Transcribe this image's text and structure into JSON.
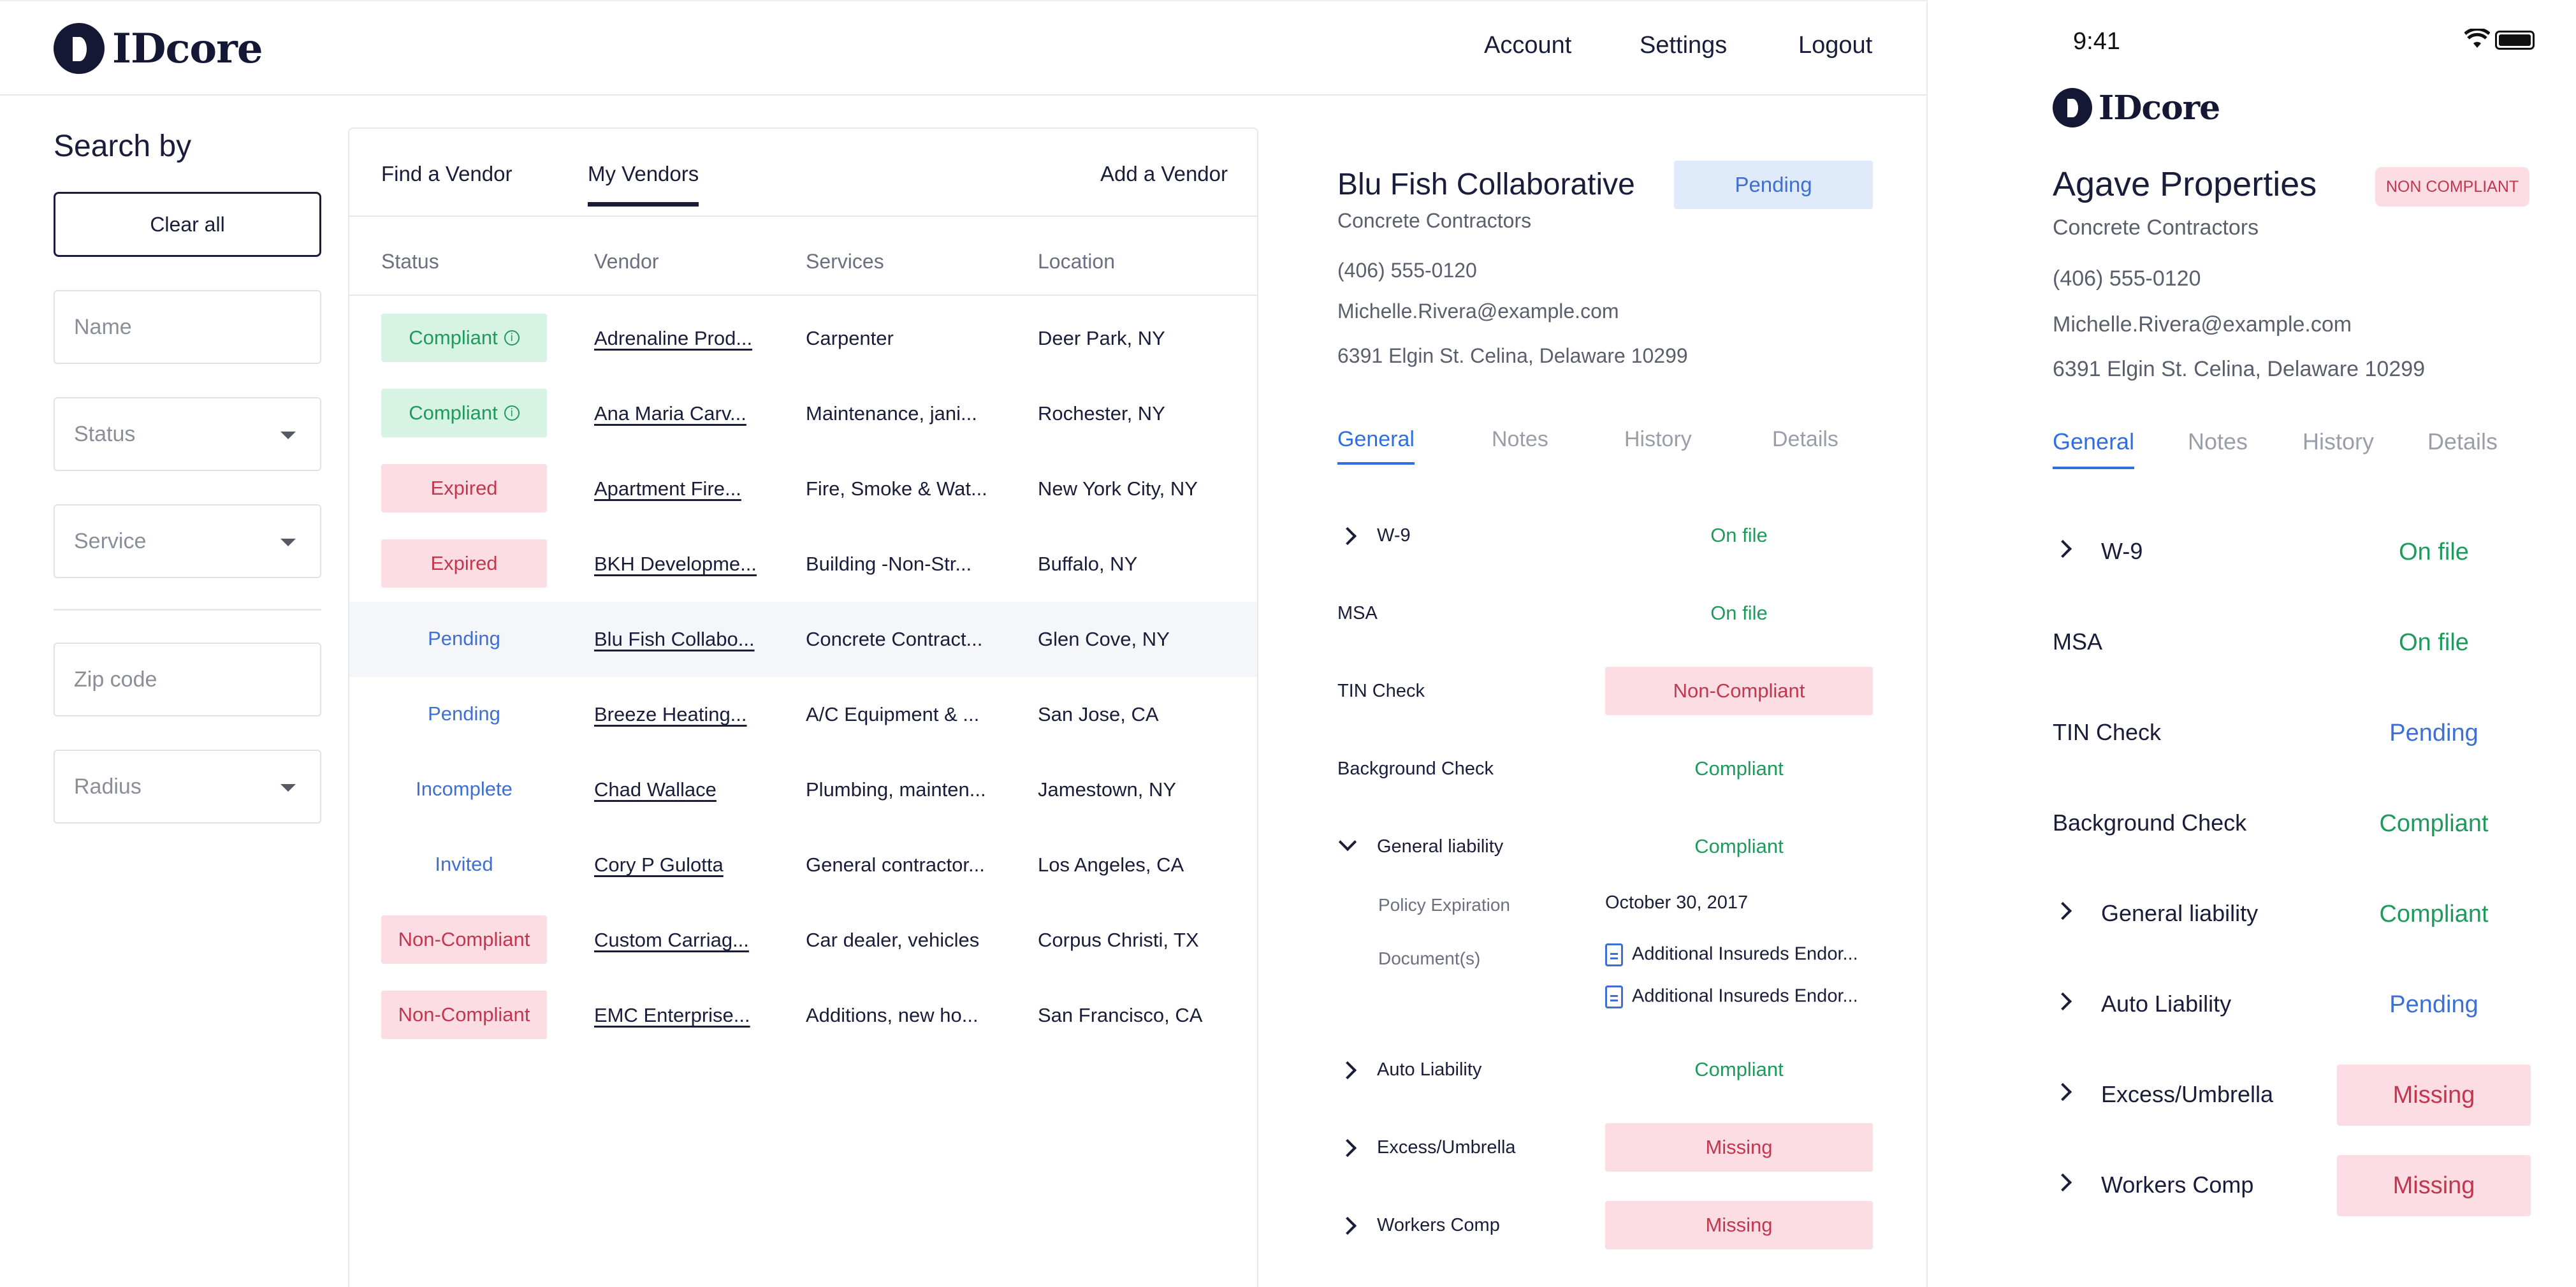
{
  "header": {
    "brand": "IDcore",
    "nav": [
      {
        "label": "Account"
      },
      {
        "label": "Settings"
      },
      {
        "label": "Logout"
      }
    ]
  },
  "sidebar": {
    "title": "Search by",
    "clear_label": "Clear all",
    "name_placeholder": "Name",
    "status_placeholder": "Status",
    "service_placeholder": "Service",
    "zip_placeholder": "Zip code",
    "radius_placeholder": "Radius"
  },
  "table": {
    "tabs": [
      {
        "label": "Find a Vendor"
      },
      {
        "label": "My Vendors"
      }
    ],
    "add_label": "Add a Vendor",
    "columns": [
      "Status",
      "Vendor",
      "Services",
      "Location"
    ],
    "rows": [
      {
        "status": "Compliant",
        "vendor": "Adrenaline Prod...",
        "services": "Carpenter",
        "location": "Deer Park, NY"
      },
      {
        "status": "Compliant",
        "vendor": "Ana Maria Carv...",
        "services": "Maintenance, jani...",
        "location": "Rochester, NY"
      },
      {
        "status": "Expired",
        "vendor": "Apartment Fire...",
        "services": "Fire, Smoke & Wat...",
        "location": "New York City, NY"
      },
      {
        "status": "Expired",
        "vendor": "BKH Developme...",
        "services": "Building -Non-Str...",
        "location": "Buffalo, NY"
      },
      {
        "status": "Pending",
        "vendor": "Blu Fish Collabo...",
        "services": "Concrete Contract...",
        "location": "Glen Cove, NY"
      },
      {
        "status": "Pending",
        "vendor": "Breeze Heating...",
        "services": "A/C Equipment & ...",
        "location": "San Jose, CA"
      },
      {
        "status": "Incomplete",
        "vendor": "Chad Wallace",
        "services": "Plumbing, mainten...",
        "location": "Jamestown, NY"
      },
      {
        "status": "Invited",
        "vendor": "Cory P Gulotta",
        "services": "General contractor...",
        "location": "Los Angeles, CA"
      },
      {
        "status": "Non-Compliant",
        "vendor": "Custom Carriag...",
        "services": "Car dealer, vehicles",
        "location": "Corpus Christi, TX"
      },
      {
        "status": "Non-Compliant",
        "vendor": "EMC Enterprise...",
        "services": "Additions, new ho...",
        "location": "San Francisco, CA"
      }
    ]
  },
  "detail": {
    "title": "Blu Fish Collaborative",
    "status": "Pending",
    "category": "Concrete Contractors",
    "phone": "(406) 555-0120",
    "email": "Michelle.Rivera@example.com",
    "address": "6391 Elgin St. Celina, Delaware 10299",
    "tabs": [
      "General",
      "Notes",
      "History",
      "Details"
    ],
    "requirements": [
      {
        "label": "W-9",
        "value": "On file"
      },
      {
        "label": "MSA",
        "value": "On file"
      },
      {
        "label": "TIN Check",
        "value": "Non-Compliant"
      },
      {
        "label": "Background Check",
        "value": "Compliant"
      },
      {
        "label": "General liability",
        "value": "Compliant"
      },
      {
        "label": "Auto Liability",
        "value": "Compliant"
      },
      {
        "label": "Excess/Umbrella",
        "value": "Missing"
      },
      {
        "label": "Workers Comp",
        "value": "Missing"
      }
    ],
    "policy_label": "Policy Expiration",
    "policy_value": "October 30, 2017",
    "documents_label": "Document(s)",
    "documents": [
      "Additional Insureds Endor...",
      "Additional Insureds Endor..."
    ]
  },
  "mobile": {
    "time": "9:41",
    "brand": "IDcore",
    "title": "Agave Properties",
    "status": "NON COMPLIANT",
    "category": "Concrete Contractors",
    "phone": "(406) 555-0120",
    "email": "Michelle.Rivera@example.com",
    "address": "6391 Elgin St. Celina, Delaware 10299",
    "tabs": [
      "General",
      "Notes",
      "History",
      "Details"
    ],
    "requirements": [
      {
        "label": "W-9",
        "value": "On file"
      },
      {
        "label": "MSA",
        "value": "On file"
      },
      {
        "label": "TIN Check",
        "value": "Pending"
      },
      {
        "label": "Background Check",
        "value": "Compliant"
      },
      {
        "label": "General liability",
        "value": "Compliant"
      },
      {
        "label": "Auto Liability",
        "value": "Pending"
      },
      {
        "label": "Excess/Umbrella",
        "value": "Missing"
      },
      {
        "label": "Workers Comp",
        "value": "Missing"
      }
    ]
  },
  "colors": {
    "navy": "#1a1d3a",
    "green": "#1f9a5d",
    "red": "#c2374f",
    "blue": "#3e6fd1",
    "pending_bg": "#dfeafb",
    "alert_bg": "#fbdde3",
    "compliant_bg": "#d7f3e4"
  }
}
